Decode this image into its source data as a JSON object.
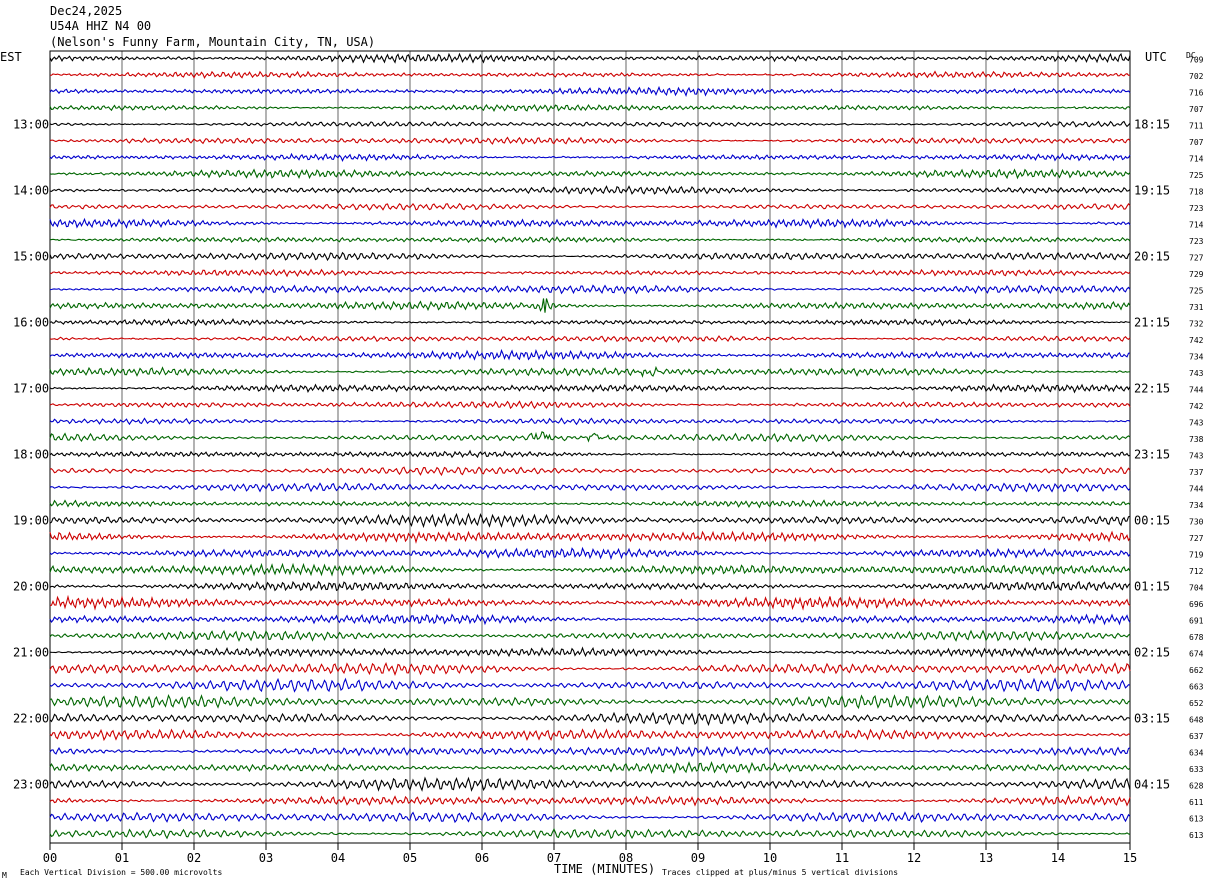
{
  "header": {
    "date": "Dec24,2025",
    "station": "U54A HHZ N4 00",
    "location": "(Nelson's Funny Farm, Mountain City, TN, USA)"
  },
  "axes": {
    "left_tz": "EST",
    "right_tz": "UTC",
    "dc_header": "DC",
    "xlabel": "TIME (MINUTES)",
    "footer_left": "Each Vertical Division =  500.00 microvolts",
    "footer_right": "Traces clipped at plus/minus 5 vertical divisions",
    "footer_mark": "M"
  },
  "colors": {
    "trace_cycle": [
      "#000000",
      "#cc0000",
      "#0000cc",
      "#006600"
    ],
    "grid": "#000000"
  },
  "chart_data": {
    "type": "line",
    "title": "U54A HHZ N4 00",
    "xlabel": "TIME (MINUTES)",
    "xlim": [
      0,
      15
    ],
    "x_ticks": [
      "00",
      "01",
      "02",
      "03",
      "04",
      "05",
      "06",
      "07",
      "08",
      "09",
      "10",
      "11",
      "12",
      "13",
      "14",
      "15"
    ],
    "rows_per_hour": 4,
    "row_count": 48,
    "left_hour_labels": [
      "13:00",
      "14:00",
      "15:00",
      "16:00",
      "17:00",
      "18:00",
      "19:00",
      "20:00",
      "21:00",
      "22:00",
      "23:00"
    ],
    "right_hour_labels": [
      "18:15",
      "19:15",
      "20:15",
      "21:15",
      "22:15",
      "23:15",
      "00:15",
      "01:15",
      "02:15",
      "03:15",
      "04:15"
    ],
    "dc_offsets": [
      709,
      702,
      716,
      707,
      711,
      707,
      714,
      725,
      718,
      723,
      714,
      723,
      727,
      729,
      725,
      731,
      732,
      742,
      734,
      743,
      744,
      742,
      743,
      738,
      743,
      737,
      744,
      734,
      730,
      727,
      719,
      712,
      704,
      696,
      691,
      678,
      674,
      662,
      663,
      652,
      648,
      637,
      634,
      633,
      628,
      611,
      613,
      613
    ],
    "events": [
      {
        "row": 15,
        "minute": 6.85,
        "amplitude": 2.2
      },
      {
        "row": 19,
        "minute": 8.3,
        "amplitude": 1.0
      },
      {
        "row": 23,
        "minute": 6.8,
        "amplitude": 2.0
      },
      {
        "row": 23,
        "minute": 7.55,
        "amplitude": 1.6
      }
    ]
  }
}
